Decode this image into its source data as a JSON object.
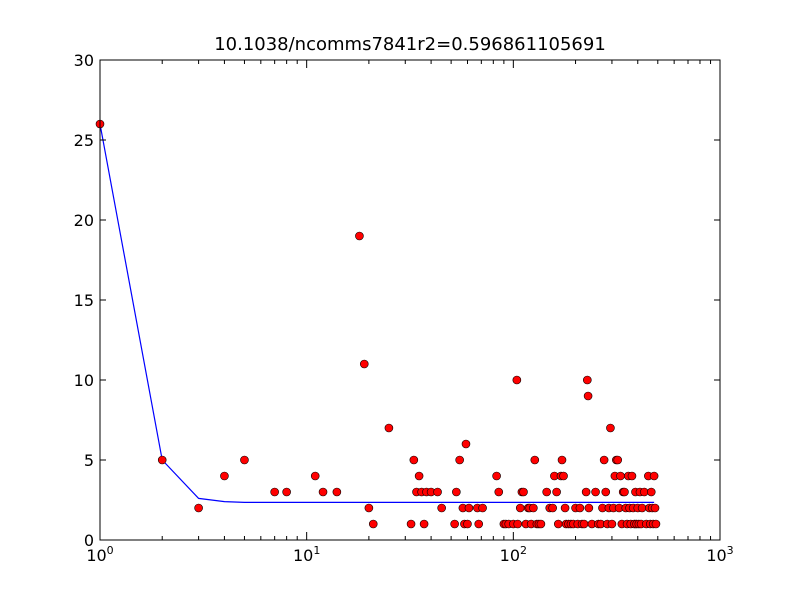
{
  "chart_data": {
    "type": "scatter",
    "title": "10.1038/ncomms7841r2=0.596861105691",
    "xlabel": "",
    "ylabel": "",
    "xscale": "log",
    "xlim": [
      1,
      1000
    ],
    "ylim": [
      0,
      30
    ],
    "x_ticks": [
      {
        "value": 1,
        "base": "10",
        "exp": "0"
      },
      {
        "value": 10,
        "base": "10",
        "exp": "1"
      },
      {
        "value": 100,
        "base": "10",
        "exp": "2"
      },
      {
        "value": 1000,
        "base": "10",
        "exp": "3"
      }
    ],
    "y_ticks": [
      {
        "value": 0,
        "label": "0"
      },
      {
        "value": 5,
        "label": "5"
      },
      {
        "value": 10,
        "label": "10"
      },
      {
        "value": 15,
        "label": "15"
      },
      {
        "value": 20,
        "label": "20"
      },
      {
        "value": 25,
        "label": "25"
      },
      {
        "value": 30,
        "label": "30"
      }
    ],
    "grid": false,
    "colors": {
      "points": "#ff0000",
      "point_edge": "#000000",
      "line": "#0000ff"
    },
    "series": [
      {
        "kind": "scatter",
        "points": [
          [
            1,
            26
          ],
          [
            2,
            5
          ],
          [
            3,
            2
          ],
          [
            4,
            4
          ],
          [
            5,
            5
          ],
          [
            7,
            3
          ],
          [
            8,
            3
          ],
          [
            11,
            4
          ],
          [
            12,
            3
          ],
          [
            14,
            3
          ],
          [
            18,
            19
          ],
          [
            19,
            11
          ],
          [
            20,
            2
          ],
          [
            21,
            1
          ],
          [
            25,
            7
          ],
          [
            32,
            1
          ],
          [
            33,
            5
          ],
          [
            34,
            3
          ],
          [
            35,
            4
          ],
          [
            36,
            3
          ],
          [
            37,
            1
          ],
          [
            38,
            3
          ],
          [
            40,
            3
          ],
          [
            43,
            3
          ],
          [
            45,
            2
          ],
          [
            52,
            1
          ],
          [
            53,
            3
          ],
          [
            55,
            5
          ],
          [
            57,
            2
          ],
          [
            58,
            1
          ],
          [
            59,
            6
          ],
          [
            60,
            1
          ],
          [
            61,
            2
          ],
          [
            67,
            2
          ],
          [
            68,
            1
          ],
          [
            71,
            2
          ],
          [
            83,
            4
          ],
          [
            85,
            3
          ],
          [
            90,
            1
          ],
          [
            92,
            1
          ],
          [
            95,
            1
          ],
          [
            100,
            1
          ],
          [
            104,
            10
          ],
          [
            105,
            1
          ],
          [
            108,
            2
          ],
          [
            110,
            3
          ],
          [
            112,
            3
          ],
          [
            115,
            1
          ],
          [
            118,
            2
          ],
          [
            120,
            2
          ],
          [
            122,
            1
          ],
          [
            125,
            2
          ],
          [
            127,
            5
          ],
          [
            130,
            1
          ],
          [
            133,
            1
          ],
          [
            136,
            1
          ],
          [
            145,
            3
          ],
          [
            150,
            2
          ],
          [
            155,
            2
          ],
          [
            158,
            4
          ],
          [
            162,
            3
          ],
          [
            165,
            1
          ],
          [
            170,
            4
          ],
          [
            172,
            5
          ],
          [
            175,
            4
          ],
          [
            178,
            2
          ],
          [
            180,
            1
          ],
          [
            185,
            1
          ],
          [
            190,
            1
          ],
          [
            195,
            1
          ],
          [
            200,
            2
          ],
          [
            205,
            1
          ],
          [
            210,
            2
          ],
          [
            215,
            1
          ],
          [
            220,
            1
          ],
          [
            225,
            3
          ],
          [
            228,
            10
          ],
          [
            230,
            9
          ],
          [
            232,
            2
          ],
          [
            240,
            1
          ],
          [
            250,
            3
          ],
          [
            258,
            1
          ],
          [
            265,
            1
          ],
          [
            270,
            2
          ],
          [
            275,
            5
          ],
          [
            280,
            3
          ],
          [
            285,
            1
          ],
          [
            290,
            2
          ],
          [
            295,
            7
          ],
          [
            300,
            1
          ],
          [
            305,
            2
          ],
          [
            310,
            4
          ],
          [
            315,
            5
          ],
          [
            320,
            5
          ],
          [
            325,
            2
          ],
          [
            330,
            4
          ],
          [
            335,
            1
          ],
          [
            340,
            3
          ],
          [
            345,
            3
          ],
          [
            350,
            2
          ],
          [
            355,
            1
          ],
          [
            360,
            4
          ],
          [
            365,
            2
          ],
          [
            370,
            1
          ],
          [
            375,
            4
          ],
          [
            380,
            2
          ],
          [
            385,
            1
          ],
          [
            390,
            3
          ],
          [
            395,
            1
          ],
          [
            400,
            2
          ],
          [
            405,
            1
          ],
          [
            410,
            3
          ],
          [
            415,
            1
          ],
          [
            420,
            2
          ],
          [
            430,
            3
          ],
          [
            440,
            1
          ],
          [
            450,
            4
          ],
          [
            455,
            2
          ],
          [
            460,
            1
          ],
          [
            465,
            3
          ],
          [
            470,
            2
          ],
          [
            475,
            1
          ],
          [
            480,
            4
          ],
          [
            485,
            2
          ],
          [
            490,
            1
          ]
        ]
      },
      {
        "kind": "line",
        "points": [
          [
            1,
            26
          ],
          [
            2,
            5
          ],
          [
            3,
            2.6
          ],
          [
            4,
            2.4
          ],
          [
            5,
            2.35
          ],
          [
            10,
            2.35
          ],
          [
            100,
            2.35
          ],
          [
            480,
            2.35
          ]
        ]
      }
    ]
  }
}
